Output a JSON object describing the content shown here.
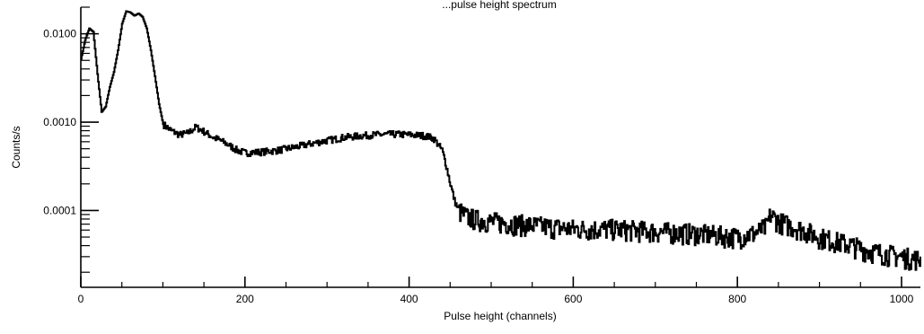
{
  "chart_data": {
    "type": "line",
    "title": "...pulse height spectrum",
    "xlabel": "Pulse height (channels)",
    "ylabel": "Counts/s",
    "xlim": [
      0,
      1023
    ],
    "ylim": [
      1.35e-05,
      0.02
    ],
    "y_scale": "log",
    "grid": false,
    "line_color": "#000000",
    "x_ticks": [
      {
        "value": 0,
        "label": "0"
      },
      {
        "value": 200,
        "label": "200"
      },
      {
        "value": 400,
        "label": "400"
      },
      {
        "value": 600,
        "label": "600"
      },
      {
        "value": 800,
        "label": "800"
      },
      {
        "value": 1000,
        "label": "1000"
      }
    ],
    "y_ticks": [
      {
        "value": 0.01,
        "label": "0.0100"
      },
      {
        "value": 0.001,
        "label": "0.0010"
      },
      {
        "value": 0.0001,
        "label": "0.0001"
      }
    ],
    "series": [
      {
        "points": [
          [
            0,
            0.0052
          ],
          [
            5,
            0.0085
          ],
          [
            10,
            0.0115
          ],
          [
            15,
            0.0105
          ],
          [
            20,
            0.0035
          ],
          [
            25,
            0.0013
          ],
          [
            30,
            0.0015
          ],
          [
            35,
            0.0025
          ],
          [
            40,
            0.0037
          ],
          [
            45,
            0.0065
          ],
          [
            50,
            0.013
          ],
          [
            55,
            0.018
          ],
          [
            60,
            0.0175
          ],
          [
            65,
            0.016
          ],
          [
            70,
            0.017
          ],
          [
            75,
            0.0155
          ],
          [
            80,
            0.0115
          ],
          [
            85,
            0.0065
          ],
          [
            90,
            0.0033
          ],
          [
            95,
            0.0016
          ],
          [
            100,
            0.00095
          ],
          [
            110,
            0.0008
          ],
          [
            120,
            0.00072
          ],
          [
            130,
            0.00075
          ],
          [
            140,
            0.00088
          ],
          [
            150,
            0.00078
          ],
          [
            160,
            0.00068
          ],
          [
            170,
            0.00062
          ],
          [
            180,
            0.00055
          ],
          [
            190,
            0.00048
          ],
          [
            200,
            0.00045
          ],
          [
            220,
            0.00046
          ],
          [
            240,
            0.00048
          ],
          [
            260,
            0.00052
          ],
          [
            280,
            0.00057
          ],
          [
            300,
            0.00062
          ],
          [
            320,
            0.00067
          ],
          [
            340,
            0.0007
          ],
          [
            360,
            0.00072
          ],
          [
            380,
            0.00073
          ],
          [
            400,
            0.00072
          ],
          [
            420,
            0.0007
          ],
          [
            430,
            0.00065
          ],
          [
            440,
            0.00048
          ],
          [
            445,
            0.00032
          ],
          [
            450,
            0.0002
          ],
          [
            455,
            0.00013
          ],
          [
            460,
            0.0001
          ],
          [
            470,
            8.5e-05
          ],
          [
            480,
            8e-05
          ],
          [
            500,
            7.5e-05
          ],
          [
            550,
            6.8e-05
          ],
          [
            600,
            6.2e-05
          ],
          [
            650,
            6.2e-05
          ],
          [
            700,
            5.8e-05
          ],
          [
            750,
            5.5e-05
          ],
          [
            800,
            5e-05
          ],
          [
            820,
            5.5e-05
          ],
          [
            835,
            6.5e-05
          ],
          [
            840,
            9e-05
          ],
          [
            850,
            7.5e-05
          ],
          [
            880,
            6e-05
          ],
          [
            900,
            5e-05
          ],
          [
            940,
            4e-05
          ],
          [
            960,
            3.5e-05
          ],
          [
            1000,
            3e-05
          ],
          [
            1023,
            2.8e-05
          ]
        ]
      }
    ]
  }
}
